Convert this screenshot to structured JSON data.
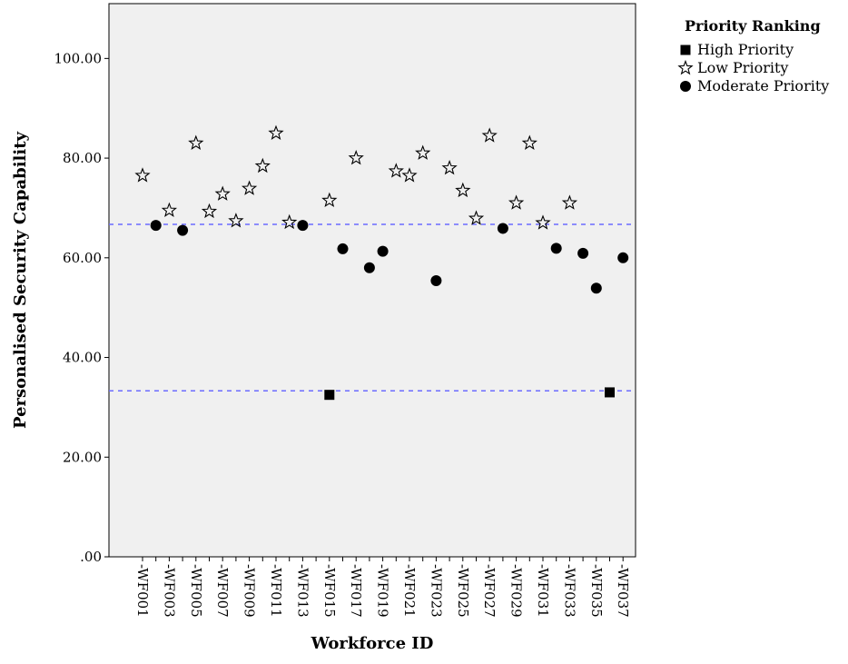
{
  "chart_data": {
    "type": "scatter",
    "title": "",
    "xlabel": "Workforce ID",
    "ylabel": "Personalised Security Capability",
    "ylim": [
      0,
      111
    ],
    "y_ticks": [
      {
        "value": 0,
        "label": ".00"
      },
      {
        "value": 20,
        "label": "20.00"
      },
      {
        "value": 40,
        "label": "40.00"
      },
      {
        "value": 60,
        "label": "60.00"
      },
      {
        "value": 80,
        "label": "80.00"
      },
      {
        "value": 100,
        "label": "100.00"
      }
    ],
    "grid": false,
    "categories": [
      "WF001",
      "WF002",
      "WF003",
      "WF004",
      "WF005",
      "WF006",
      "WF007",
      "WF008",
      "WF009",
      "WF010",
      "WF011",
      "WF012",
      "WF013",
      "WF014",
      "WF015",
      "WF016",
      "WF017",
      "WF018",
      "WF019",
      "WF020",
      "WF021",
      "WF022",
      "WF023",
      "WF024",
      "WF025",
      "WF026",
      "WF027",
      "WF028",
      "WF029",
      "WF030",
      "WF031",
      "WF032",
      "WF033",
      "WF034",
      "WF035",
      "WF036",
      "WF037"
    ],
    "x_tick_labels": [
      "WF001",
      "WF003",
      "WF005",
      "WF007",
      "WF009",
      "WF011",
      "WF013",
      "WF015",
      "WF017",
      "WF019",
      "WF021",
      "WF023",
      "WF025",
      "WF027",
      "WF029",
      "WF031",
      "WF033",
      "WF035",
      "WF037"
    ],
    "reference_lines": [
      66.7,
      33.3
    ],
    "reference_line_color": "#6b6bff",
    "plot_background": "#f0f0f0",
    "legend": {
      "title": "Priority Ranking",
      "placement": "top-right, outside plot"
    },
    "series": [
      {
        "name": "High Priority",
        "marker": "square",
        "points": [
          {
            "x": "WF015",
            "y": 32.5
          },
          {
            "x": "WF036",
            "y": 33.0
          }
        ]
      },
      {
        "name": "Low Priority",
        "marker": "star",
        "points": [
          {
            "x": "WF001",
            "y": 76.5
          },
          {
            "x": "WF003",
            "y": 69.5
          },
          {
            "x": "WF005",
            "y": 83.0
          },
          {
            "x": "WF006",
            "y": 69.3
          },
          {
            "x": "WF007",
            "y": 72.8
          },
          {
            "x": "WF008",
            "y": 67.4
          },
          {
            "x": "WF009",
            "y": 73.9
          },
          {
            "x": "WF010",
            "y": 78.4
          },
          {
            "x": "WF011",
            "y": 85.0
          },
          {
            "x": "WF012",
            "y": 67.1
          },
          {
            "x": "WF015",
            "y": 71.5
          },
          {
            "x": "WF017",
            "y": 80.0
          },
          {
            "x": "WF020",
            "y": 77.4
          },
          {
            "x": "WF021",
            "y": 76.5
          },
          {
            "x": "WF022",
            "y": 81.0
          },
          {
            "x": "WF024",
            "y": 78.0
          },
          {
            "x": "WF025",
            "y": 73.5
          },
          {
            "x": "WF026",
            "y": 67.9
          },
          {
            "x": "WF027",
            "y": 84.5
          },
          {
            "x": "WF029",
            "y": 71.0
          },
          {
            "x": "WF030",
            "y": 83.0
          },
          {
            "x": "WF031",
            "y": 67.0
          },
          {
            "x": "WF033",
            "y": 71.0
          }
        ]
      },
      {
        "name": "Moderate Priority",
        "marker": "circle",
        "points": [
          {
            "x": "WF002",
            "y": 66.5
          },
          {
            "x": "WF004",
            "y": 65.5
          },
          {
            "x": "WF013",
            "y": 66.5
          },
          {
            "x": "WF016",
            "y": 61.8
          },
          {
            "x": "WF018",
            "y": 58.0
          },
          {
            "x": "WF019",
            "y": 61.3
          },
          {
            "x": "WF023",
            "y": 55.4
          },
          {
            "x": "WF028",
            "y": 65.9
          },
          {
            "x": "WF032",
            "y": 61.9
          },
          {
            "x": "WF034",
            "y": 60.9
          },
          {
            "x": "WF035",
            "y": 53.9
          },
          {
            "x": "WF037",
            "y": 60.0
          }
        ]
      }
    ]
  }
}
